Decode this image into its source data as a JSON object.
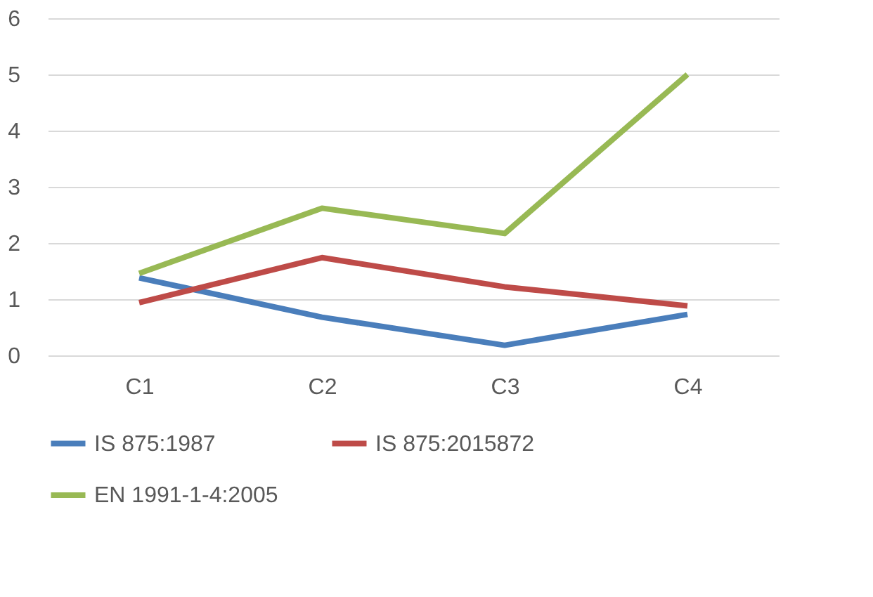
{
  "chart_data": {
    "type": "line",
    "categories": [
      "C1",
      "C2",
      "C3",
      "C4"
    ],
    "series": [
      {
        "name": "IS 875:1987",
        "color": "#4a7ebb",
        "values": [
          1.38,
          0.68,
          0.18,
          0.73
        ]
      },
      {
        "name": "IS 875:2015872",
        "color": "#be4b48",
        "values": [
          0.94,
          1.74,
          1.22,
          0.88
        ]
      },
      {
        "name": "EN 1991-1-4:2005",
        "color": "#98b954",
        "values": [
          1.46,
          2.62,
          2.17,
          5.0
        ]
      }
    ],
    "ylim": [
      0,
      6
    ],
    "yticks": [
      0,
      1,
      2,
      3,
      4,
      5,
      6
    ],
    "grid": "y",
    "legend": "bottom",
    "marker": "none",
    "line_style": "solid"
  }
}
